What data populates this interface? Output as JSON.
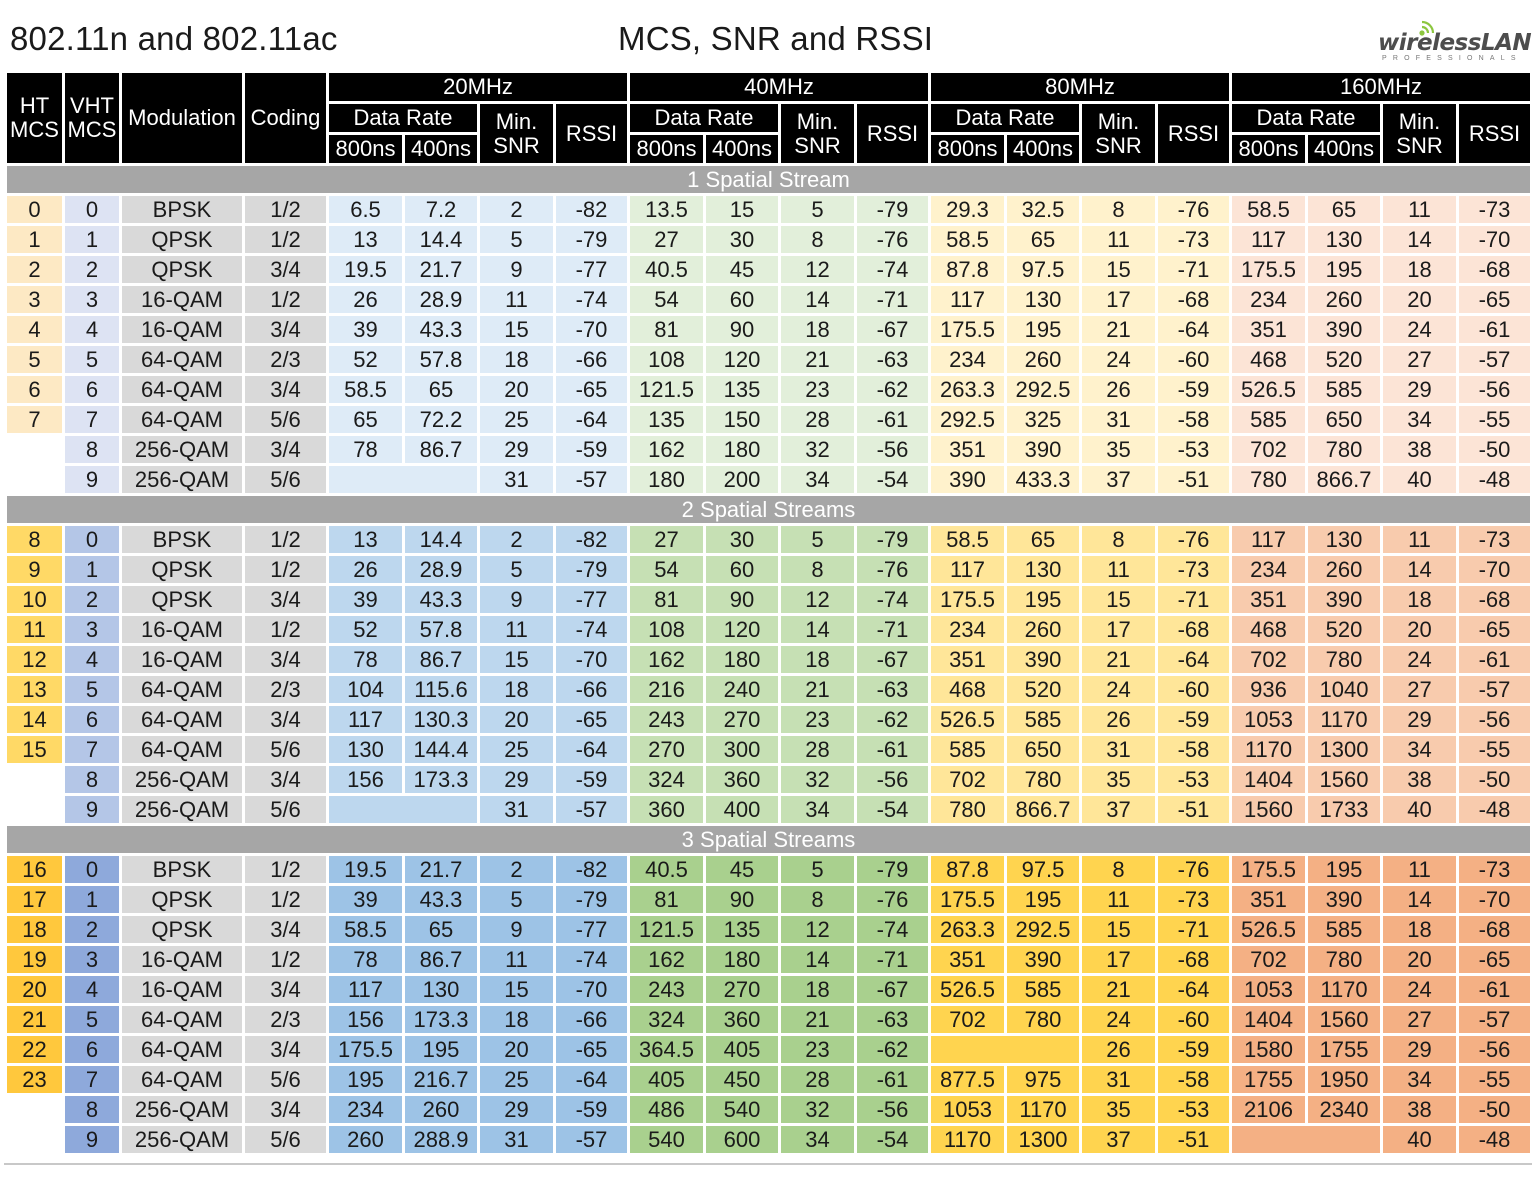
{
  "header": {
    "title_left": "802.11n and 802.11ac",
    "title_center": "MCS, SNR and RSSI",
    "logo_main": "wirelessLAN",
    "logo_sub": "PROFESSIONALS"
  },
  "columns": {
    "ht_mcs": "HT MCS",
    "vht_mcs": "VHT MCS",
    "modulation": "Modulation",
    "coding": "Coding",
    "data_rate": "Data Rate",
    "gi_800": "800ns",
    "gi_400": "400ns",
    "min_snr": "Min. SNR",
    "rssi": "RSSI",
    "bandwidths": [
      "20MHz",
      "40MHz",
      "80MHz",
      "160MHz"
    ]
  },
  "colors": {
    "header_bg": "#000000",
    "section_bar": "#a6a6a6",
    "section_palettes": [
      {
        "ht": "#fde9c4",
        "vht": "#dde3f3",
        "mod": "#d9d9d9",
        "coding": "#d9d9d9",
        "bw": [
          "#deebf7",
          "#e2efda",
          "#fff2cc",
          "#fce4d6"
        ]
      },
      {
        "ht": "#ffd966",
        "vht": "#b4c6e7",
        "mod": "#d9d9d9",
        "coding": "#d9d9d9",
        "bw": [
          "#bdd7ee",
          "#c6e0b4",
          "#ffe699",
          "#f8cbad"
        ]
      },
      {
        "ht": "#ffc83d",
        "vht": "#8ea9db",
        "mod": "#d9d9d9",
        "coding": "#d9d9d9",
        "bw": [
          "#9dc3e6",
          "#a9d08e",
          "#ffd44f",
          "#f4b084"
        ]
      }
    ]
  },
  "sections": [
    {
      "label": "1 Spatial Stream",
      "rows": [
        {
          "ht": "0",
          "vht": "0",
          "mod": "BPSK",
          "coding": "1/2",
          "bw": [
            [
              "6.5",
              "7.2",
              "2",
              "-82"
            ],
            [
              "13.5",
              "15",
              "5",
              "-79"
            ],
            [
              "29.3",
              "32.5",
              "8",
              "-76"
            ],
            [
              "58.5",
              "65",
              "11",
              "-73"
            ]
          ]
        },
        {
          "ht": "1",
          "vht": "1",
          "mod": "QPSK",
          "coding": "1/2",
          "bw": [
            [
              "13",
              "14.4",
              "5",
              "-79"
            ],
            [
              "27",
              "30",
              "8",
              "-76"
            ],
            [
              "58.5",
              "65",
              "11",
              "-73"
            ],
            [
              "117",
              "130",
              "14",
              "-70"
            ]
          ]
        },
        {
          "ht": "2",
          "vht": "2",
          "mod": "QPSK",
          "coding": "3/4",
          "bw": [
            [
              "19.5",
              "21.7",
              "9",
              "-77"
            ],
            [
              "40.5",
              "45",
              "12",
              "-74"
            ],
            [
              "87.8",
              "97.5",
              "15",
              "-71"
            ],
            [
              "175.5",
              "195",
              "18",
              "-68"
            ]
          ]
        },
        {
          "ht": "3",
          "vht": "3",
          "mod": "16-QAM",
          "coding": "1/2",
          "bw": [
            [
              "26",
              "28.9",
              "11",
              "-74"
            ],
            [
              "54",
              "60",
              "14",
              "-71"
            ],
            [
              "117",
              "130",
              "17",
              "-68"
            ],
            [
              "234",
              "260",
              "20",
              "-65"
            ]
          ]
        },
        {
          "ht": "4",
          "vht": "4",
          "mod": "16-QAM",
          "coding": "3/4",
          "bw": [
            [
              "39",
              "43.3",
              "15",
              "-70"
            ],
            [
              "81",
              "90",
              "18",
              "-67"
            ],
            [
              "175.5",
              "195",
              "21",
              "-64"
            ],
            [
              "351",
              "390",
              "24",
              "-61"
            ]
          ]
        },
        {
          "ht": "5",
          "vht": "5",
          "mod": "64-QAM",
          "coding": "2/3",
          "bw": [
            [
              "52",
              "57.8",
              "18",
              "-66"
            ],
            [
              "108",
              "120",
              "21",
              "-63"
            ],
            [
              "234",
              "260",
              "24",
              "-60"
            ],
            [
              "468",
              "520",
              "27",
              "-57"
            ]
          ]
        },
        {
          "ht": "6",
          "vht": "6",
          "mod": "64-QAM",
          "coding": "3/4",
          "bw": [
            [
              "58.5",
              "65",
              "20",
              "-65"
            ],
            [
              "121.5",
              "135",
              "23",
              "-62"
            ],
            [
              "263.3",
              "292.5",
              "26",
              "-59"
            ],
            [
              "526.5",
              "585",
              "29",
              "-56"
            ]
          ]
        },
        {
          "ht": "7",
          "vht": "7",
          "mod": "64-QAM",
          "coding": "5/6",
          "bw": [
            [
              "65",
              "72.2",
              "25",
              "-64"
            ],
            [
              "135",
              "150",
              "28",
              "-61"
            ],
            [
              "292.5",
              "325",
              "31",
              "-58"
            ],
            [
              "585",
              "650",
              "34",
              "-55"
            ]
          ]
        },
        {
          "ht": "",
          "vht": "8",
          "mod": "256-QAM",
          "coding": "3/4",
          "bw": [
            [
              "78",
              "86.7",
              "29",
              "-59"
            ],
            [
              "162",
              "180",
              "32",
              "-56"
            ],
            [
              "351",
              "390",
              "35",
              "-53"
            ],
            [
              "702",
              "780",
              "38",
              "-50"
            ]
          ]
        },
        {
          "ht": "",
          "vht": "9",
          "mod": "256-QAM",
          "coding": "5/6",
          "bw": [
            [
              "",
              "",
              "31",
              "-57"
            ],
            [
              "180",
              "200",
              "34",
              "-54"
            ],
            [
              "390",
              "433.3",
              "37",
              "-51"
            ],
            [
              "780",
              "866.7",
              "40",
              "-48"
            ]
          ]
        }
      ]
    },
    {
      "label": "2 Spatial Streams",
      "rows": [
        {
          "ht": "8",
          "vht": "0",
          "mod": "BPSK",
          "coding": "1/2",
          "bw": [
            [
              "13",
              "14.4",
              "2",
              "-82"
            ],
            [
              "27",
              "30",
              "5",
              "-79"
            ],
            [
              "58.5",
              "65",
              "8",
              "-76"
            ],
            [
              "117",
              "130",
              "11",
              "-73"
            ]
          ]
        },
        {
          "ht": "9",
          "vht": "1",
          "mod": "QPSK",
          "coding": "1/2",
          "bw": [
            [
              "26",
              "28.9",
              "5",
              "-79"
            ],
            [
              "54",
              "60",
              "8",
              "-76"
            ],
            [
              "117",
              "130",
              "11",
              "-73"
            ],
            [
              "234",
              "260",
              "14",
              "-70"
            ]
          ]
        },
        {
          "ht": "10",
          "vht": "2",
          "mod": "QPSK",
          "coding": "3/4",
          "bw": [
            [
              "39",
              "43.3",
              "9",
              "-77"
            ],
            [
              "81",
              "90",
              "12",
              "-74"
            ],
            [
              "175.5",
              "195",
              "15",
              "-71"
            ],
            [
              "351",
              "390",
              "18",
              "-68"
            ]
          ]
        },
        {
          "ht": "11",
          "vht": "3",
          "mod": "16-QAM",
          "coding": "1/2",
          "bw": [
            [
              "52",
              "57.8",
              "11",
              "-74"
            ],
            [
              "108",
              "120",
              "14",
              "-71"
            ],
            [
              "234",
              "260",
              "17",
              "-68"
            ],
            [
              "468",
              "520",
              "20",
              "-65"
            ]
          ]
        },
        {
          "ht": "12",
          "vht": "4",
          "mod": "16-QAM",
          "coding": "3/4",
          "bw": [
            [
              "78",
              "86.7",
              "15",
              "-70"
            ],
            [
              "162",
              "180",
              "18",
              "-67"
            ],
            [
              "351",
              "390",
              "21",
              "-64"
            ],
            [
              "702",
              "780",
              "24",
              "-61"
            ]
          ]
        },
        {
          "ht": "13",
          "vht": "5",
          "mod": "64-QAM",
          "coding": "2/3",
          "bw": [
            [
              "104",
              "115.6",
              "18",
              "-66"
            ],
            [
              "216",
              "240",
              "21",
              "-63"
            ],
            [
              "468",
              "520",
              "24",
              "-60"
            ],
            [
              "936",
              "1040",
              "27",
              "-57"
            ]
          ]
        },
        {
          "ht": "14",
          "vht": "6",
          "mod": "64-QAM",
          "coding": "3/4",
          "bw": [
            [
              "117",
              "130.3",
              "20",
              "-65"
            ],
            [
              "243",
              "270",
              "23",
              "-62"
            ],
            [
              "526.5",
              "585",
              "26",
              "-59"
            ],
            [
              "1053",
              "1170",
              "29",
              "-56"
            ]
          ]
        },
        {
          "ht": "15",
          "vht": "7",
          "mod": "64-QAM",
          "coding": "5/6",
          "bw": [
            [
              "130",
              "144.4",
              "25",
              "-64"
            ],
            [
              "270",
              "300",
              "28",
              "-61"
            ],
            [
              "585",
              "650",
              "31",
              "-58"
            ],
            [
              "1170",
              "1300",
              "34",
              "-55"
            ]
          ]
        },
        {
          "ht": "",
          "vht": "8",
          "mod": "256-QAM",
          "coding": "3/4",
          "bw": [
            [
              "156",
              "173.3",
              "29",
              "-59"
            ],
            [
              "324",
              "360",
              "32",
              "-56"
            ],
            [
              "702",
              "780",
              "35",
              "-53"
            ],
            [
              "1404",
              "1560",
              "38",
              "-50"
            ]
          ]
        },
        {
          "ht": "",
          "vht": "9",
          "mod": "256-QAM",
          "coding": "5/6",
          "bw": [
            [
              "",
              "",
              "31",
              "-57"
            ],
            [
              "360",
              "400",
              "34",
              "-54"
            ],
            [
              "780",
              "866.7",
              "37",
              "-51"
            ],
            [
              "1560",
              "1733",
              "40",
              "-48"
            ]
          ]
        }
      ]
    },
    {
      "label": "3 Spatial Streams",
      "rows": [
        {
          "ht": "16",
          "vht": "0",
          "mod": "BPSK",
          "coding": "1/2",
          "bw": [
            [
              "19.5",
              "21.7",
              "2",
              "-82"
            ],
            [
              "40.5",
              "45",
              "5",
              "-79"
            ],
            [
              "87.8",
              "97.5",
              "8",
              "-76"
            ],
            [
              "175.5",
              "195",
              "11",
              "-73"
            ]
          ]
        },
        {
          "ht": "17",
          "vht": "1",
          "mod": "QPSK",
          "coding": "1/2",
          "bw": [
            [
              "39",
              "43.3",
              "5",
              "-79"
            ],
            [
              "81",
              "90",
              "8",
              "-76"
            ],
            [
              "175.5",
              "195",
              "11",
              "-73"
            ],
            [
              "351",
              "390",
              "14",
              "-70"
            ]
          ]
        },
        {
          "ht": "18",
          "vht": "2",
          "mod": "QPSK",
          "coding": "3/4",
          "bw": [
            [
              "58.5",
              "65",
              "9",
              "-77"
            ],
            [
              "121.5",
              "135",
              "12",
              "-74"
            ],
            [
              "263.3",
              "292.5",
              "15",
              "-71"
            ],
            [
              "526.5",
              "585",
              "18",
              "-68"
            ]
          ]
        },
        {
          "ht": "19",
          "vht": "3",
          "mod": "16-QAM",
          "coding": "1/2",
          "bw": [
            [
              "78",
              "86.7",
              "11",
              "-74"
            ],
            [
              "162",
              "180",
              "14",
              "-71"
            ],
            [
              "351",
              "390",
              "17",
              "-68"
            ],
            [
              "702",
              "780",
              "20",
              "-65"
            ]
          ]
        },
        {
          "ht": "20",
          "vht": "4",
          "mod": "16-QAM",
          "coding": "3/4",
          "bw": [
            [
              "117",
              "130",
              "15",
              "-70"
            ],
            [
              "243",
              "270",
              "18",
              "-67"
            ],
            [
              "526.5",
              "585",
              "21",
              "-64"
            ],
            [
              "1053",
              "1170",
              "24",
              "-61"
            ]
          ]
        },
        {
          "ht": "21",
          "vht": "5",
          "mod": "64-QAM",
          "coding": "2/3",
          "bw": [
            [
              "156",
              "173.3",
              "18",
              "-66"
            ],
            [
              "324",
              "360",
              "21",
              "-63"
            ],
            [
              "702",
              "780",
              "24",
              "-60"
            ],
            [
              "1404",
              "1560",
              "27",
              "-57"
            ]
          ]
        },
        {
          "ht": "22",
          "vht": "6",
          "mod": "64-QAM",
          "coding": "3/4",
          "bw": [
            [
              "175.5",
              "195",
              "20",
              "-65"
            ],
            [
              "364.5",
              "405",
              "23",
              "-62"
            ],
            [
              "",
              "",
              "26",
              "-59"
            ],
            [
              "1580",
              "1755",
              "29",
              "-56"
            ]
          ]
        },
        {
          "ht": "23",
          "vht": "7",
          "mod": "64-QAM",
          "coding": "5/6",
          "bw": [
            [
              "195",
              "216.7",
              "25",
              "-64"
            ],
            [
              "405",
              "450",
              "28",
              "-61"
            ],
            [
              "877.5",
              "975",
              "31",
              "-58"
            ],
            [
              "1755",
              "1950",
              "34",
              "-55"
            ]
          ]
        },
        {
          "ht": "",
          "vht": "8",
          "mod": "256-QAM",
          "coding": "3/4",
          "bw": [
            [
              "234",
              "260",
              "29",
              "-59"
            ],
            [
              "486",
              "540",
              "32",
              "-56"
            ],
            [
              "1053",
              "1170",
              "35",
              "-53"
            ],
            [
              "2106",
              "2340",
              "38",
              "-50"
            ]
          ]
        },
        {
          "ht": "",
          "vht": "9",
          "mod": "256-QAM",
          "coding": "5/6",
          "bw": [
            [
              "260",
              "288.9",
              "31",
              "-57"
            ],
            [
              "540",
              "600",
              "34",
              "-54"
            ],
            [
              "1170",
              "1300",
              "37",
              "-51"
            ],
            [
              "",
              "",
              "40",
              "-48"
            ]
          ]
        }
      ]
    }
  ]
}
